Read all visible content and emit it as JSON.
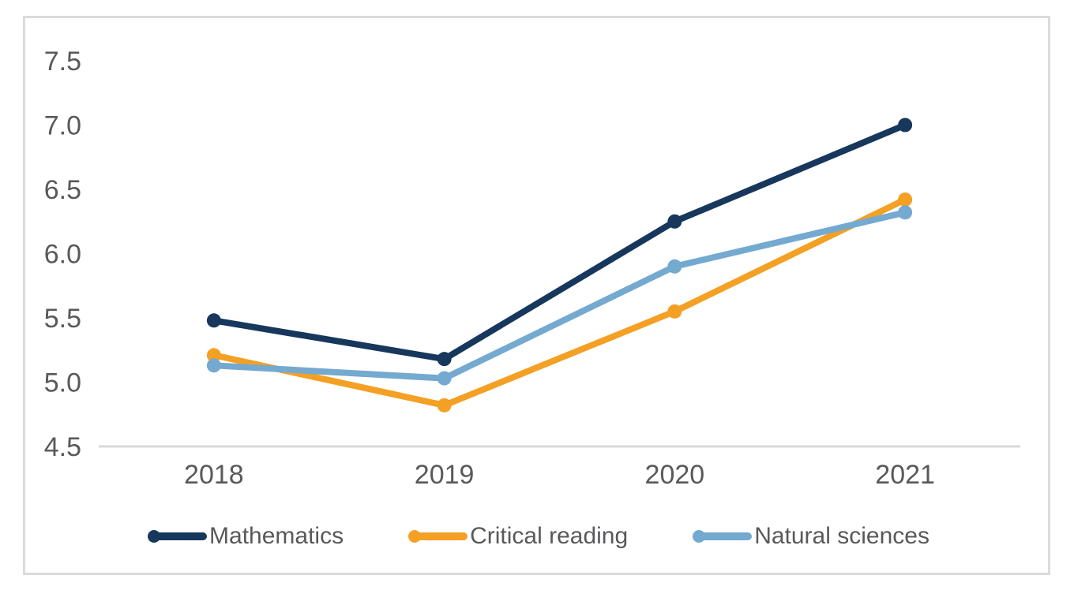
{
  "chart_data": {
    "type": "line",
    "title": "",
    "xlabel": "",
    "ylabel": "",
    "categories": [
      "2018",
      "2019",
      "2020",
      "2021"
    ],
    "series": [
      {
        "name": "Mathematics",
        "color": "#17375c",
        "values": [
          5.48,
          5.18,
          6.25,
          7.0
        ]
      },
      {
        "name": "Critical reading",
        "color": "#f4a024",
        "values": [
          5.21,
          4.82,
          5.55,
          6.42
        ]
      },
      {
        "name": "Natural sciences",
        "color": "#74a9d0",
        "values": [
          5.13,
          5.03,
          5.9,
          6.32
        ]
      }
    ],
    "ylim": [
      4.5,
      7.5
    ],
    "yticks": [
      4.5,
      5.0,
      5.5,
      6.0,
      6.5,
      7.0,
      7.5
    ],
    "ytick_format_decimals": 1,
    "grid": "baseline-only",
    "legend_position": "bottom",
    "marker": "circle",
    "colors": {
      "axis_line": "#d9d9d9",
      "tick_text": "#58595b",
      "frame_border": "#dbdbdb",
      "background": "#ffffff"
    }
  }
}
